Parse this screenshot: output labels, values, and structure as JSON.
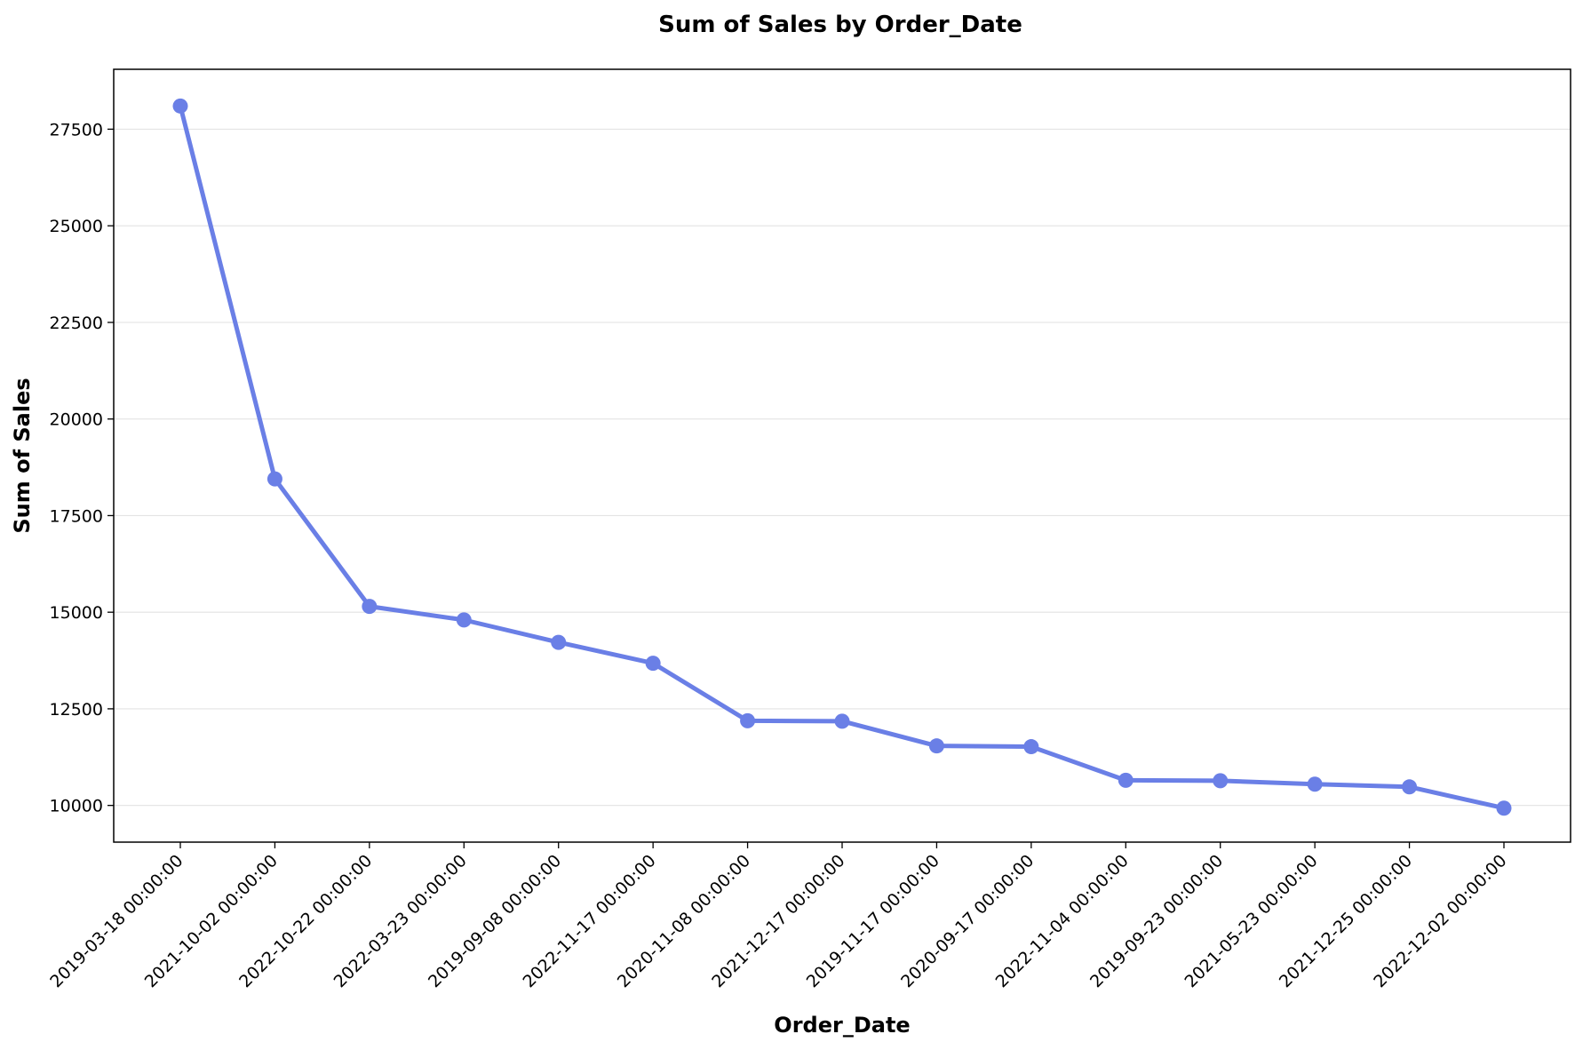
{
  "chart_data": {
    "type": "line",
    "title": "Sum of Sales by Order_Date",
    "xlabel": "Order_Date",
    "ylabel": "Sum of Sales",
    "categories": [
      "2019-03-18 00:00:00",
      "2021-10-02 00:00:00",
      "2022-10-22 00:00:00",
      "2022-03-23 00:00:00",
      "2019-09-08 00:00:00",
      "2022-11-17 00:00:00",
      "2020-11-08 00:00:00",
      "2021-12-17 00:00:00",
      "2019-11-17 00:00:00",
      "2020-09-17 00:00:00",
      "2022-11-04 00:00:00",
      "2019-09-23 00:00:00",
      "2021-05-23 00:00:00",
      "2021-12-25 00:00:00",
      "2022-12-02 00:00:00"
    ],
    "values": [
      28100,
      18450,
      15150,
      14800,
      14220,
      13680,
      12190,
      12180,
      11540,
      11520,
      10650,
      10640,
      10550,
      10480,
      9930
    ],
    "yticks": [
      10000,
      12500,
      15000,
      17500,
      20000,
      22500,
      25000,
      27500
    ],
    "ylim": [
      9050,
      29050
    ],
    "grid": "horizontal",
    "line_color": "#6a7fe6"
  }
}
